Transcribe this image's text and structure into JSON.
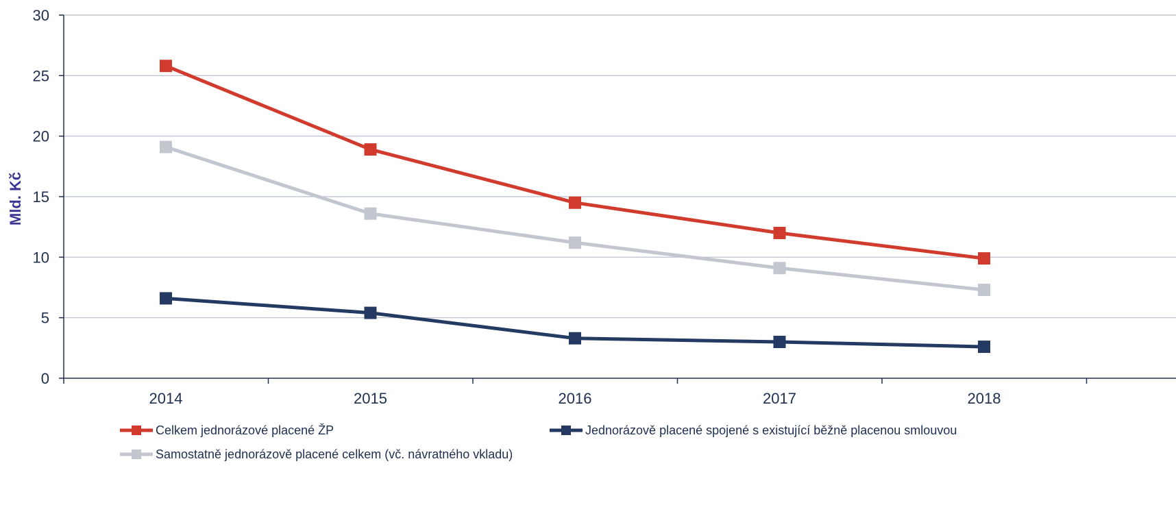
{
  "chart_data": {
    "type": "line",
    "title": "",
    "xlabel": "",
    "ylabel": "Mld. Kč",
    "categories": [
      "2014",
      "2015",
      "2016",
      "2017",
      "2018"
    ],
    "ylim": [
      0,
      30
    ],
    "yticks": [
      0,
      5,
      10,
      15,
      20,
      25,
      30
    ],
    "grid": true,
    "legend_position": "bottom",
    "series": [
      {
        "name": "Celkem jednorázové placené ŽP",
        "color": "#d13b2e",
        "marker": "square",
        "values": [
          25.8,
          18.9,
          14.5,
          12.0,
          9.9
        ]
      },
      {
        "name": "Jednorázově placené spojené s existující běžně placenou smlouvou",
        "color": "#243a63",
        "marker": "square",
        "values": [
          6.6,
          5.4,
          3.3,
          3.0,
          2.6
        ]
      },
      {
        "name": "Samostatně jednorázově placené celkem (vč. návratného vkladu)",
        "color": "#c2c6cf",
        "marker": "square",
        "values": [
          19.1,
          13.6,
          11.2,
          9.1,
          7.3
        ]
      }
    ]
  }
}
